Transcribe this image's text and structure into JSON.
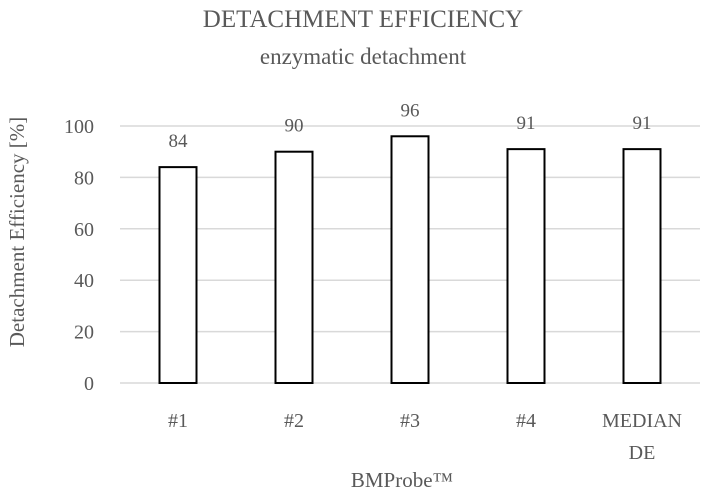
{
  "chart_data": {
    "type": "bar",
    "title": "DETACHMENT EFFICIENCY",
    "subtitle": "enzymatic detachment",
    "xlabel": "BMProbe™",
    "ylabel": "Detachment Efficiency [%]",
    "categories": [
      [
        "#1"
      ],
      [
        "#2"
      ],
      [
        "#3"
      ],
      [
        "#4"
      ],
      [
        "MEDIAN",
        "DE"
      ]
    ],
    "values": [
      84,
      90,
      96,
      91,
      91
    ],
    "data_labels": [
      "84",
      "90",
      "96",
      "91",
      "91"
    ],
    "ylim": [
      0,
      100
    ],
    "yticks": [
      0,
      20,
      40,
      60,
      80,
      100
    ],
    "grid": true,
    "legend": "none",
    "bar_fill": "#ffffff",
    "bar_stroke": "#000000",
    "text_color": "#595959",
    "grid_color": "#d9d9d9"
  }
}
